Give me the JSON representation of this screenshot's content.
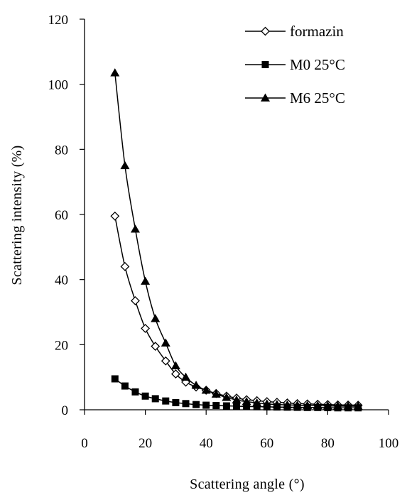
{
  "chart_data": {
    "type": "line",
    "xlabel": "Scattering angle (°)",
    "ylabel": "Scattering intensity (%)",
    "xlim": [
      0,
      100
    ],
    "ylim": [
      0,
      120
    ],
    "xticks": [
      0,
      20,
      40,
      60,
      80,
      100
    ],
    "yticks": [
      0,
      20,
      40,
      60,
      80,
      100,
      120
    ],
    "grid": false,
    "legend_position": "top-right",
    "x": [
      10,
      13.3,
      16.7,
      20,
      23.3,
      26.7,
      30,
      33.3,
      36.7,
      40,
      43.3,
      46.7,
      50,
      53.3,
      56.7,
      60,
      63.3,
      66.7,
      70,
      73.3,
      76.7,
      80,
      83.3,
      86.7,
      90
    ],
    "series": [
      {
        "name": "formazin",
        "marker": "diamond-open",
        "values": [
          59.5,
          44,
          33.5,
          25,
          19.5,
          15,
          11,
          8.5,
          7,
          6,
          5,
          4.2,
          3.6,
          3.1,
          2.8,
          2.5,
          2.3,
          2.1,
          1.9,
          1.8,
          1.7,
          1.6,
          1.5,
          1.45,
          1.4
        ]
      },
      {
        "name": "M0 25°C",
        "marker": "square-filled",
        "values": [
          9.5,
          7.3,
          5.5,
          4.2,
          3.4,
          2.7,
          2.2,
          1.9,
          1.6,
          1.4,
          1.3,
          1.2,
          1.1,
          1.0,
          0.95,
          0.9,
          0.85,
          0.8,
          0.75,
          0.7,
          0.7,
          0.65,
          0.6,
          0.6,
          0.6
        ]
      },
      {
        "name": "M6 25°C",
        "marker": "triangle-filled",
        "values": [
          103.5,
          75,
          55.5,
          39.5,
          28,
          20.5,
          13.5,
          10,
          7.5,
          6,
          4.8,
          3.8,
          3.0,
          2.5,
          2.1,
          1.8,
          1.6,
          1.5,
          1.4,
          1.3,
          1.25,
          1.2,
          1.15,
          1.1,
          1.1
        ]
      }
    ]
  }
}
